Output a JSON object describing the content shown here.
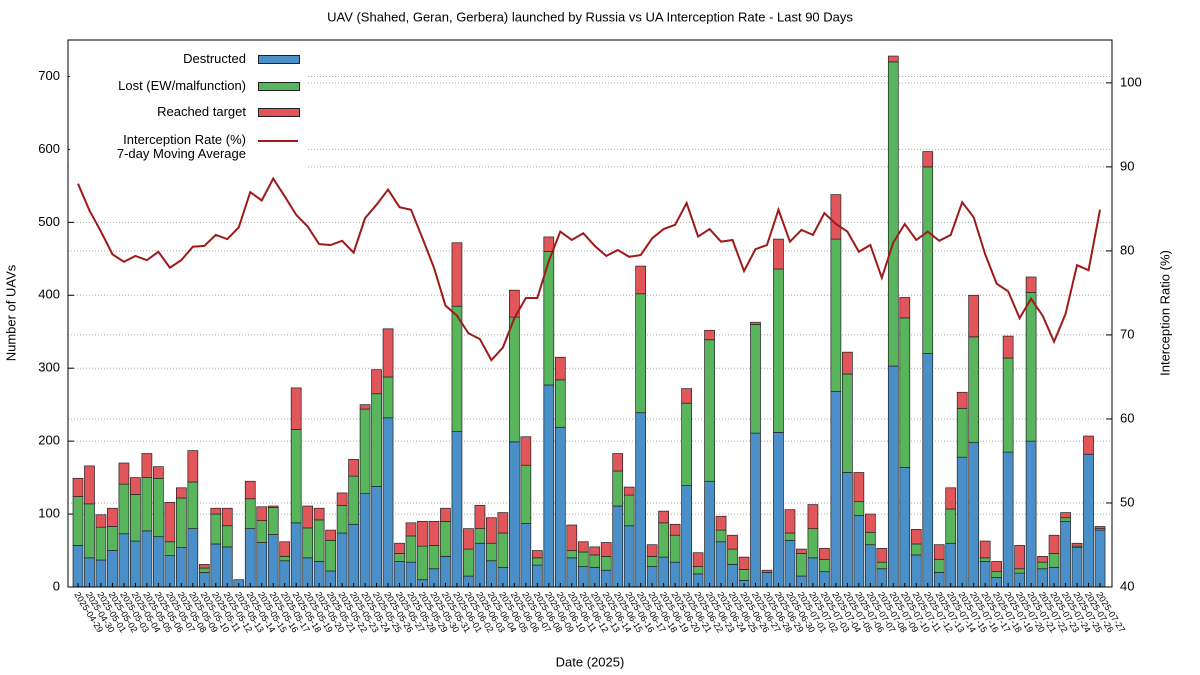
{
  "chart_data": {
    "type": "bar",
    "title": "UAV (Shahed, Geran, Gerbera) launched by Russia vs UA Interception Rate - Last 90 Days",
    "xlabel": "Date (2025)",
    "ylabel": "Number of UAVs",
    "y2label": "Interception Ratio (%)",
    "categories": [
      "2025-04-29",
      "2025-04-30",
      "2025-05-01",
      "2025-05-02",
      "2025-05-03",
      "2025-05-04",
      "2025-05-05",
      "2025-05-06",
      "2025-05-07",
      "2025-05-08",
      "2025-05-09",
      "2025-05-10",
      "2025-05-11",
      "2025-05-12",
      "2025-05-13",
      "2025-05-14",
      "2025-05-15",
      "2025-05-16",
      "2025-05-17",
      "2025-05-18",
      "2025-05-19",
      "2025-05-20",
      "2025-05-21",
      "2025-05-22",
      "2025-05-23",
      "2025-05-24",
      "2025-05-25",
      "2025-05-26",
      "2025-05-27",
      "2025-05-28",
      "2025-05-29",
      "2025-05-30",
      "2025-05-31",
      "2025-06-01",
      "2025-06-02",
      "2025-06-03",
      "2025-06-04",
      "2025-06-05",
      "2025-06-06",
      "2025-06-07",
      "2025-06-08",
      "2025-06-09",
      "2025-06-10",
      "2025-06-11",
      "2025-06-12",
      "2025-06-13",
      "2025-06-14",
      "2025-06-15",
      "2025-06-16",
      "2025-06-17",
      "2025-06-18",
      "2025-06-19",
      "2025-06-20",
      "2025-06-21",
      "2025-06-22",
      "2025-06-23",
      "2025-06-24",
      "2025-06-25",
      "2025-06-26",
      "2025-06-27",
      "2025-06-28",
      "2025-06-29",
      "2025-06-30",
      "2025-07-01",
      "2025-07-02",
      "2025-07-03",
      "2025-07-04",
      "2025-07-05",
      "2025-07-06",
      "2025-07-07",
      "2025-07-08",
      "2025-07-09",
      "2025-07-10",
      "2025-07-11",
      "2025-07-12",
      "2025-07-13",
      "2025-07-14",
      "2025-07-15",
      "2025-07-16",
      "2025-07-17",
      "2025-07-18",
      "2025-07-19",
      "2025-07-20",
      "2025-07-21",
      "2025-07-22",
      "2025-07-23",
      "2025-07-24",
      "2025-07-25",
      "2025-07-26",
      "2025-07-27"
    ],
    "series": [
      {
        "name": "Destructed",
        "color": "#4a8fc7",
        "stacked": true,
        "values": [
          57,
          40,
          37,
          50,
          73,
          63,
          77,
          69,
          43,
          54,
          80,
          20,
          59,
          55,
          10,
          80,
          61,
          72,
          36,
          88,
          40,
          35,
          22,
          74,
          86,
          128,
          138,
          232,
          35,
          34,
          10,
          25,
          42,
          213,
          15,
          60,
          36,
          27,
          199,
          87,
          30,
          277,
          219,
          40,
          28,
          27,
          23,
          111,
          84,
          239,
          28,
          41,
          34,
          139,
          18,
          145,
          62,
          31,
          9,
          211,
          20,
          212,
          64,
          15,
          40,
          21,
          268,
          157,
          98,
          58,
          25,
          303,
          164,
          44,
          320,
          20,
          60,
          178,
          198,
          35,
          13,
          185,
          19,
          200,
          25,
          27,
          90,
          54,
          182,
          78
        ]
      },
      {
        "name": "Lost (EW/malfunction)",
        "color": "#58b55b",
        "stacked": true,
        "values": [
          67,
          74,
          45,
          33,
          68,
          64,
          73,
          80,
          19,
          68,
          64,
          6,
          41,
          29,
          0,
          41,
          30,
          37,
          6,
          128,
          41,
          57,
          42,
          38,
          66,
          116,
          127,
          56,
          11,
          36,
          46,
          32,
          48,
          172,
          37,
          20,
          24,
          47,
          171,
          80,
          10,
          183,
          65,
          10,
          20,
          17,
          19,
          48,
          42,
          163,
          14,
          47,
          37,
          113,
          10,
          194,
          16,
          21,
          15,
          149,
          0,
          224,
          10,
          31,
          40,
          17,
          209,
          135,
          19,
          17,
          9,
          417,
          205,
          15,
          256,
          18,
          47,
          67,
          145,
          5,
          8,
          129,
          6,
          204,
          9,
          19,
          5,
          2,
          0,
          2
        ]
      },
      {
        "name": "Reached target",
        "color": "#e0565a",
        "stacked": true,
        "values": [
          25,
          52,
          17,
          25,
          29,
          23,
          33,
          16,
          54,
          14,
          43,
          5,
          8,
          24,
          0,
          24,
          19,
          2,
          20,
          57,
          30,
          16,
          14,
          17,
          23,
          6,
          33,
          66,
          14,
          18,
          34,
          33,
          18,
          87,
          28,
          32,
          35,
          28,
          37,
          39,
          10,
          20,
          31,
          35,
          14,
          11,
          19,
          24,
          11,
          38,
          16,
          16,
          15,
          20,
          19,
          13,
          19,
          19,
          17,
          3,
          3,
          41,
          32,
          6,
          33,
          15,
          61,
          30,
          40,
          25,
          19,
          8,
          28,
          20,
          21,
          20,
          29,
          22,
          57,
          23,
          14,
          30,
          32,
          21,
          8,
          25,
          7,
          4,
          25,
          3
        ]
      },
      {
        "name": "Interception Rate (%)\n7-day Moving Average",
        "color": "#9e1a1a",
        "type": "line",
        "axis": "y2",
        "values": [
          88.0,
          84.8,
          82.3,
          79.6,
          78.7,
          79.4,
          78.9,
          79.9,
          78.0,
          78.9,
          80.5,
          80.6,
          81.9,
          81.4,
          82.8,
          87.0,
          86.0,
          88.6,
          86.5,
          84.3,
          82.9,
          80.8,
          80.7,
          81.2,
          79.8,
          83.9,
          85.5,
          87.3,
          85.2,
          84.9,
          81.5,
          78.0,
          73.5,
          72.3,
          70.2,
          69.5,
          67.0,
          68.5,
          72.0,
          74.4,
          74.4,
          78.8,
          82.3,
          81.3,
          82.1,
          80.6,
          79.4,
          80.1,
          79.3,
          79.5,
          81.5,
          82.6,
          83.1,
          85.7,
          81.7,
          82.6,
          81.1,
          81.3,
          77.6,
          80.2,
          80.7,
          84.9,
          81.1,
          82.5,
          81.9,
          84.5,
          83.2,
          82.3,
          79.9,
          80.7,
          76.8,
          81.0,
          83.2,
          81.3,
          82.3,
          81.2,
          81.9,
          85.8,
          84.0,
          79.6,
          76.1,
          75.2,
          72.0,
          74.3,
          72.3,
          69.2,
          72.5,
          78.3,
          77.7,
          84.9
        ]
      }
    ],
    "ylim": [
      0,
      750
    ],
    "yticks": [
      0,
      100,
      200,
      300,
      400,
      500,
      600,
      700
    ],
    "y2lim": [
      40,
      105.1
    ],
    "y2ticks": [
      40,
      50,
      60,
      70,
      80,
      90,
      100
    ],
    "grid": true,
    "legend": "upper left"
  }
}
